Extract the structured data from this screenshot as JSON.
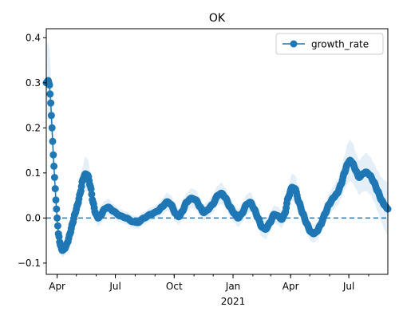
{
  "chart_data": {
    "type": "line",
    "title": "OK",
    "xlabel": "",
    "ylabel": "",
    "x_range": [
      "2020-03-15",
      "2021-08-31"
    ],
    "ylim": [
      -0.125,
      0.42
    ],
    "yticks": [
      -0.1,
      0.0,
      0.1,
      0.2,
      0.3,
      0.4
    ],
    "ytick_labels": [
      "−0.1",
      "0.0",
      "0.1",
      "0.2",
      "0.3",
      "0.4"
    ],
    "xticks": [
      {
        "date": "2020-04-01",
        "label": "Apr",
        "sublabel": ""
      },
      {
        "date": "2020-07-01",
        "label": "Jul",
        "sublabel": ""
      },
      {
        "date": "2020-10-01",
        "label": "Oct",
        "sublabel": ""
      },
      {
        "date": "2021-01-01",
        "label": "Jan",
        "sublabel": "2021"
      },
      {
        "date": "2021-04-01",
        "label": "Apr",
        "sublabel": ""
      },
      {
        "date": "2021-07-01",
        "label": "Jul",
        "sublabel": ""
      }
    ],
    "reference_line": {
      "y": 0.0,
      "style": "dashed",
      "color": "#1f77b4"
    },
    "legend": {
      "placement": "top-right",
      "entries": [
        "growth_rate"
      ]
    },
    "grid": false,
    "series": [
      {
        "name": "growth_rate",
        "color": "#1f77b4",
        "band_color": "#dbe9f6",
        "marker": "circle",
        "anchors": [
          [
            "2020-03-15",
            0.3,
            0.08
          ],
          [
            "2020-03-18",
            0.305,
            0.085
          ],
          [
            "2020-03-20",
            0.295,
            0.08
          ],
          [
            "2020-03-22",
            0.255,
            0.07
          ],
          [
            "2020-03-24",
            0.2,
            0.055
          ],
          [
            "2020-03-26",
            0.14,
            0.04
          ],
          [
            "2020-03-28",
            0.09,
            0.03
          ],
          [
            "2020-03-30",
            0.04,
            0.022
          ],
          [
            "2020-04-01",
            0.0,
            0.018
          ],
          [
            "2020-04-03",
            -0.035,
            0.016
          ],
          [
            "2020-04-06",
            -0.06,
            0.015
          ],
          [
            "2020-04-09",
            -0.072,
            0.015
          ],
          [
            "2020-04-13",
            -0.068,
            0.015
          ],
          [
            "2020-04-17",
            -0.055,
            0.015
          ],
          [
            "2020-04-21",
            -0.035,
            0.015
          ],
          [
            "2020-04-25",
            -0.012,
            0.015
          ],
          [
            "2020-04-29",
            0.01,
            0.016
          ],
          [
            "2020-05-03",
            0.03,
            0.018
          ],
          [
            "2020-05-07",
            0.055,
            0.022
          ],
          [
            "2020-05-11",
            0.085,
            0.03
          ],
          [
            "2020-05-15",
            0.098,
            0.038
          ],
          [
            "2020-05-19",
            0.095,
            0.035
          ],
          [
            "2020-05-23",
            0.07,
            0.03
          ],
          [
            "2020-05-27",
            0.035,
            0.025
          ],
          [
            "2020-05-31",
            0.01,
            0.02
          ],
          [
            "2020-06-04",
            0.0,
            0.018
          ],
          [
            "2020-06-08",
            0.005,
            0.018
          ],
          [
            "2020-06-14",
            0.02,
            0.018
          ],
          [
            "2020-06-20",
            0.024,
            0.018
          ],
          [
            "2020-06-28",
            0.015,
            0.016
          ],
          [
            "2020-07-08",
            0.005,
            0.015
          ],
          [
            "2020-07-18",
            0.0,
            0.014
          ],
          [
            "2020-07-28",
            -0.008,
            0.014
          ],
          [
            "2020-08-05",
            -0.01,
            0.014
          ],
          [
            "2020-08-15",
            0.0,
            0.014
          ],
          [
            "2020-08-25",
            0.008,
            0.015
          ],
          [
            "2020-09-05",
            0.015,
            0.016
          ],
          [
            "2020-09-12",
            0.025,
            0.018
          ],
          [
            "2020-09-20",
            0.036,
            0.02
          ],
          [
            "2020-09-26",
            0.03,
            0.02
          ],
          [
            "2020-10-03",
            0.01,
            0.018
          ],
          [
            "2020-10-08",
            0.003,
            0.018
          ],
          [
            "2020-10-14",
            0.015,
            0.018
          ],
          [
            "2020-10-20",
            0.035,
            0.02
          ],
          [
            "2020-10-28",
            0.044,
            0.022
          ],
          [
            "2020-11-04",
            0.04,
            0.022
          ],
          [
            "2020-11-10",
            0.025,
            0.02
          ],
          [
            "2020-11-16",
            0.012,
            0.018
          ],
          [
            "2020-11-22",
            0.018,
            0.018
          ],
          [
            "2020-11-30",
            0.03,
            0.02
          ],
          [
            "2020-12-08",
            0.05,
            0.022
          ],
          [
            "2020-12-14",
            0.055,
            0.024
          ],
          [
            "2020-12-20",
            0.045,
            0.022
          ],
          [
            "2020-12-27",
            0.025,
            0.02
          ],
          [
            "2021-01-03",
            0.01,
            0.02
          ],
          [
            "2021-01-09",
            0.0,
            0.02
          ],
          [
            "2021-01-15",
            0.01,
            0.02
          ],
          [
            "2021-01-22",
            0.03,
            0.022
          ],
          [
            "2021-01-28",
            0.035,
            0.022
          ],
          [
            "2021-02-03",
            0.02,
            0.022
          ],
          [
            "2021-02-09",
            0.0,
            0.022
          ],
          [
            "2021-02-15",
            -0.02,
            0.022
          ],
          [
            "2021-02-21",
            -0.025,
            0.022
          ],
          [
            "2021-02-28",
            -0.01,
            0.02
          ],
          [
            "2021-03-06",
            0.008,
            0.02
          ],
          [
            "2021-03-12",
            0.005,
            0.02
          ],
          [
            "2021-03-18",
            -0.003,
            0.02
          ],
          [
            "2021-03-23",
            0.01,
            0.02
          ],
          [
            "2021-03-28",
            0.045,
            0.024
          ],
          [
            "2021-04-03",
            0.068,
            0.03
          ],
          [
            "2021-04-08",
            0.065,
            0.03
          ],
          [
            "2021-04-14",
            0.035,
            0.026
          ],
          [
            "2021-04-20",
            0.01,
            0.022
          ],
          [
            "2021-04-26",
            -0.012,
            0.02
          ],
          [
            "2021-05-02",
            -0.03,
            0.02
          ],
          [
            "2021-05-07",
            -0.035,
            0.02
          ],
          [
            "2021-05-12",
            -0.03,
            0.02
          ],
          [
            "2021-05-18",
            -0.015,
            0.02
          ],
          [
            "2021-05-25",
            0.01,
            0.022
          ],
          [
            "2021-05-31",
            0.03,
            0.024
          ],
          [
            "2021-06-07",
            0.045,
            0.026
          ],
          [
            "2021-06-13",
            0.055,
            0.028
          ],
          [
            "2021-06-19",
            0.075,
            0.032
          ],
          [
            "2021-06-24",
            0.1,
            0.038
          ],
          [
            "2021-06-29",
            0.12,
            0.045
          ],
          [
            "2021-07-03",
            0.128,
            0.046
          ],
          [
            "2021-07-07",
            0.122,
            0.044
          ],
          [
            "2021-07-12",
            0.105,
            0.04
          ],
          [
            "2021-07-17",
            0.09,
            0.038
          ],
          [
            "2021-07-23",
            0.098,
            0.04
          ],
          [
            "2021-07-28",
            0.102,
            0.042
          ],
          [
            "2021-08-03",
            0.095,
            0.042
          ],
          [
            "2021-08-09",
            0.08,
            0.042
          ],
          [
            "2021-08-15",
            0.06,
            0.045
          ],
          [
            "2021-08-21",
            0.04,
            0.05
          ],
          [
            "2021-08-26",
            0.028,
            0.055
          ],
          [
            "2021-08-31",
            0.02,
            0.06
          ]
        ]
      }
    ]
  }
}
